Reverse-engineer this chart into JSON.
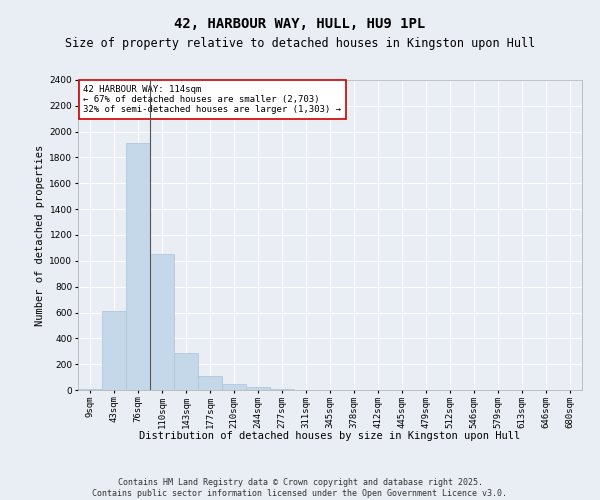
{
  "title": "42, HARBOUR WAY, HULL, HU9 1PL",
  "subtitle": "Size of property relative to detached houses in Kingston upon Hull",
  "xlabel": "Distribution of detached houses by size in Kingston upon Hull",
  "ylabel": "Number of detached properties",
  "categories": [
    "9sqm",
    "43sqm",
    "76sqm",
    "110sqm",
    "143sqm",
    "177sqm",
    "210sqm",
    "244sqm",
    "277sqm",
    "311sqm",
    "345sqm",
    "378sqm",
    "412sqm",
    "445sqm",
    "479sqm",
    "512sqm",
    "546sqm",
    "579sqm",
    "613sqm",
    "646sqm",
    "680sqm"
  ],
  "values": [
    10,
    610,
    1910,
    1050,
    290,
    110,
    45,
    20,
    5,
    0,
    0,
    0,
    0,
    0,
    0,
    0,
    0,
    0,
    0,
    0,
    0
  ],
  "bar_color": "#c5d8ea",
  "bar_edge_color": "#a8c4d8",
  "highlight_line_color": "#555555",
  "vline_x": 2.5,
  "ylim": [
    0,
    2400
  ],
  "yticks": [
    0,
    200,
    400,
    600,
    800,
    1000,
    1200,
    1400,
    1600,
    1800,
    2000,
    2200,
    2400
  ],
  "annotation_title": "42 HARBOUR WAY: 114sqm",
  "annotation_line1": "← 67% of detached houses are smaller (2,703)",
  "annotation_line2": "32% of semi-detached houses are larger (1,303) →",
  "annotation_box_color": "#ffffff",
  "annotation_box_edge": "#cc0000",
  "footer_line1": "Contains HM Land Registry data © Crown copyright and database right 2025.",
  "footer_line2": "Contains public sector information licensed under the Open Government Licence v3.0.",
  "background_color": "#e8eef4",
  "grid_color": "#ffffff",
  "title_fontsize": 10,
  "subtitle_fontsize": 8.5,
  "axis_label_fontsize": 7.5,
  "tick_fontsize": 6.5,
  "annotation_fontsize": 6.5,
  "footer_fontsize": 6
}
